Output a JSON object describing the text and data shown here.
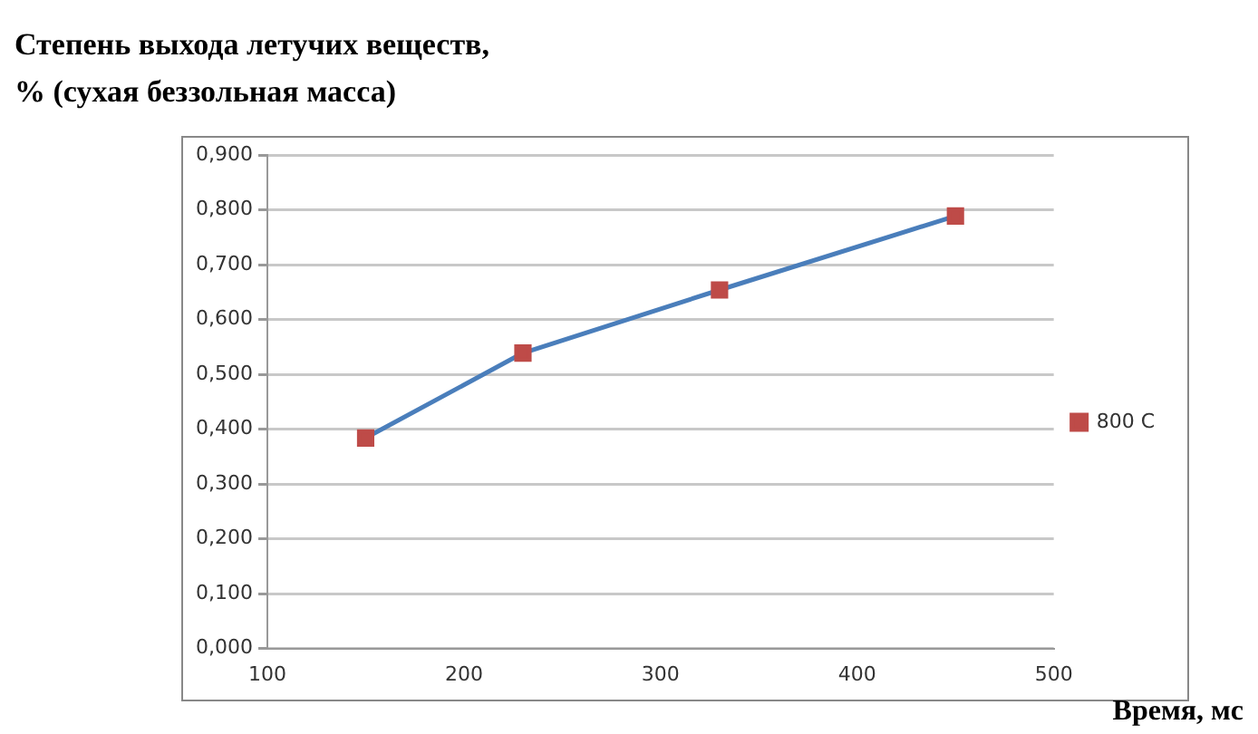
{
  "chart_data": {
    "type": "line",
    "title": "Степень выхода летучих веществ,\n% (сухая беззольная масса)",
    "xlabel": "Время, мс",
    "x": [
      150,
      230,
      330,
      450
    ],
    "series": [
      {
        "name": "800 C",
        "color": "#4a7ebb",
        "colors": [
          "#be4b48",
          "#be4b48",
          "#be4b48",
          "#be4b48"
        ],
        "values": [
          0.384,
          0.539,
          0.654,
          0.789
        ]
      }
    ],
    "xlim": [
      100,
      500
    ],
    "xticks": [
      100,
      200,
      300,
      400,
      500
    ],
    "ylim": [
      0,
      0.9
    ],
    "yticks": [
      {
        "value": 0,
        "label": "0,000"
      },
      {
        "value": 0.1,
        "label": "0,100"
      },
      {
        "value": 0.2,
        "label": "0,200"
      },
      {
        "value": 0.3,
        "label": "0,300"
      },
      {
        "value": 0.4,
        "label": "0,400"
      },
      {
        "value": 0.5,
        "label": "0,500"
      },
      {
        "value": 0.6,
        "label": "0,600"
      },
      {
        "value": 0.7,
        "label": "0,700"
      },
      {
        "value": 0.8,
        "label": "0,800"
      },
      {
        "value": 0.9,
        "label": "0,900"
      }
    ],
    "grid": "y",
    "legend": "right",
    "marker": "square",
    "line_style": "solid"
  }
}
